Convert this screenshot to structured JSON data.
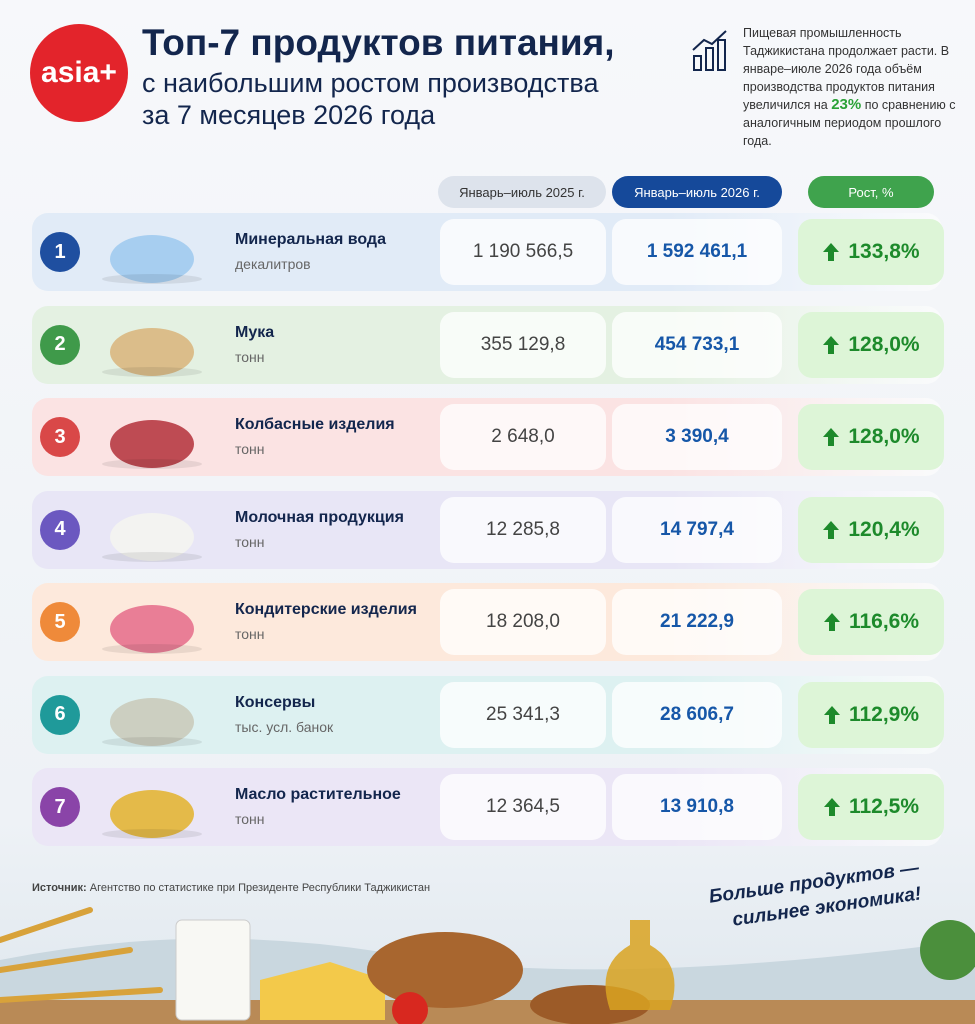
{
  "logo": "asia+",
  "header": {
    "title": "Топ-7 продуктов питания,",
    "subtitle_lines": [
      "с наибольшим ростом производства",
      "за 7 месяцев 2026 года"
    ]
  },
  "note": {
    "text_before": "Пищевая промышленность Таджикистана продолжает расти. В январе–июле 2026 года объём производства продуктов питания увеличился на",
    "highlight": "23%",
    "text_after": "по сравнению с аналогичным периодом прошлого года."
  },
  "table": {
    "columns": [
      "Январь–июль 2025 г.",
      "Январь–июль 2026 г.",
      "Рост, %"
    ],
    "rows": [
      {
        "rank": 1,
        "name": "Минеральная вода",
        "unit": "декалитров",
        "v2025": "1 190 566,5",
        "v2026": "1 592 461,1",
        "growth": "133,8%"
      },
      {
        "rank": 2,
        "name": "Мука",
        "unit": "тонн",
        "v2025": "355 129,8",
        "v2026": "454 733,1",
        "growth": "128,0%"
      },
      {
        "rank": 3,
        "name": "Колбасные изделия",
        "unit": "тонн",
        "v2025": "2 648,0",
        "v2026": "3 390,4",
        "growth": "128,0%"
      },
      {
        "rank": 4,
        "name": "Молочная продукция",
        "unit": "тонн",
        "v2025": "12 285,8",
        "v2026": "14 797,4",
        "growth": "120,4%"
      },
      {
        "rank": 5,
        "name": "Кондитерские изделия",
        "unit": "тонн",
        "v2025": "18 208,0",
        "v2026": "21 222,9",
        "growth": "116,6%"
      },
      {
        "rank": 6,
        "name": "Консервы",
        "unit": "тыс. усл. банок",
        "v2025": "25 341,3",
        "v2026": "28 606,7",
        "growth": "112,9%"
      },
      {
        "rank": 7,
        "name": "Масло растительное",
        "unit": "тонн",
        "v2025": "12 364,5",
        "v2026": "13 910,8",
        "growth": "112,5%"
      }
    ]
  },
  "source": {
    "label": "Источник:",
    "text": "Агентство по статистике при Президенте Республики Таджикистан"
  },
  "slogan": [
    "Больше продуктов —",
    "сильнее экономика!"
  ]
}
